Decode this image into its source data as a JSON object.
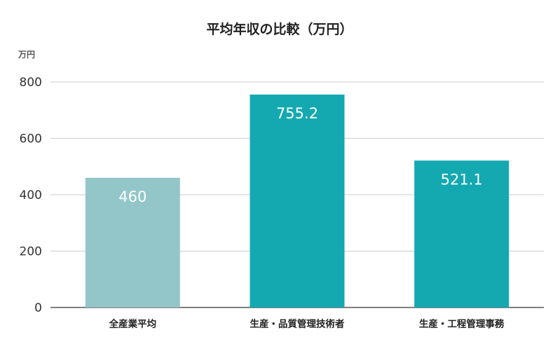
{
  "chart_data": {
    "type": "bar",
    "title": "平均年収の比較（万円）",
    "unit_label": "万円",
    "categories": [
      "全産業平均",
      "生産・品質管理技術者",
      "生産・工程管理事務"
    ],
    "values": [
      460,
      755.2,
      521.1
    ],
    "value_labels": [
      "460",
      "755.2",
      "521.1"
    ],
    "colors": [
      "#93c6c8",
      "#14a9b0",
      "#14a9b0"
    ],
    "ylim": [
      0,
      800
    ],
    "yticks": [
      0,
      200,
      400,
      600,
      800
    ],
    "grid": true,
    "legend": "none"
  }
}
